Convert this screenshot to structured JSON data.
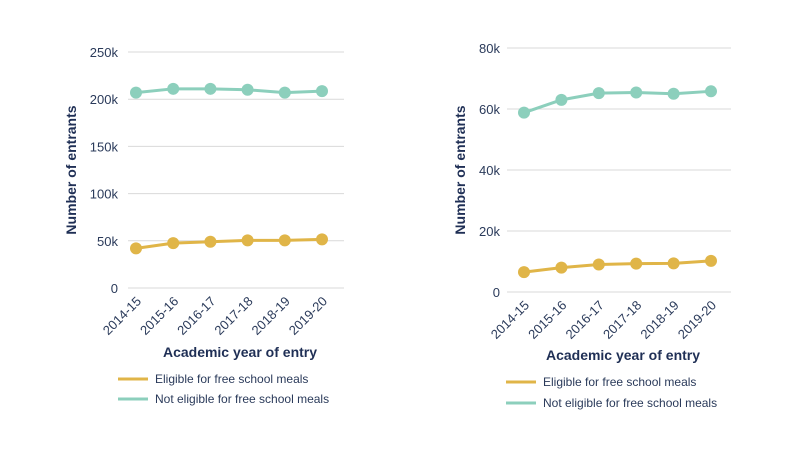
{
  "chart_data": [
    {
      "type": "line",
      "categories": [
        "2014-15",
        "2015-16",
        "2016-17",
        "2017-18",
        "2018-19",
        "2019-20"
      ],
      "series": [
        {
          "name": "Eligible for free school meals",
          "color": "#e0b548",
          "values": [
            42000,
            47500,
            49000,
            50500,
            50500,
            51500
          ]
        },
        {
          "name": "Not eligible for free school meals",
          "color": "#8ccfbc",
          "values": [
            207000,
            211000,
            211000,
            210000,
            207000,
            208500
          ]
        }
      ],
      "ylim": [
        0,
        250000
      ],
      "yticks": [
        0,
        50000,
        100000,
        150000,
        200000,
        250000
      ],
      "ytick_labels": [
        "0",
        "50k",
        "100k",
        "150k",
        "200k",
        "250k"
      ],
      "xlabel": "Academic year of entry",
      "ylabel": "Number of entrants",
      "grid": true,
      "legend": "bottom"
    },
    {
      "type": "line",
      "categories": [
        "2014-15",
        "2015-16",
        "2016-17",
        "2017-18",
        "2018-19",
        "2019-20"
      ],
      "series": [
        {
          "name": "Eligible for free school meals",
          "color": "#e0b548",
          "values": [
            6500,
            8000,
            9000,
            9300,
            9400,
            10200
          ]
        },
        {
          "name": "Not eligible for free school meals",
          "color": "#8ccfbc",
          "values": [
            58800,
            63000,
            65200,
            65400,
            65000,
            65800
          ]
        }
      ],
      "ylim": [
        0,
        80000
      ],
      "yticks": [
        0,
        20000,
        40000,
        60000,
        80000
      ],
      "ytick_labels": [
        "0",
        "20k",
        "40k",
        "60k",
        "80k"
      ],
      "xlabel": "Academic year of entry",
      "ylabel": "Number of entrants",
      "grid": true,
      "legend": "bottom"
    }
  ]
}
